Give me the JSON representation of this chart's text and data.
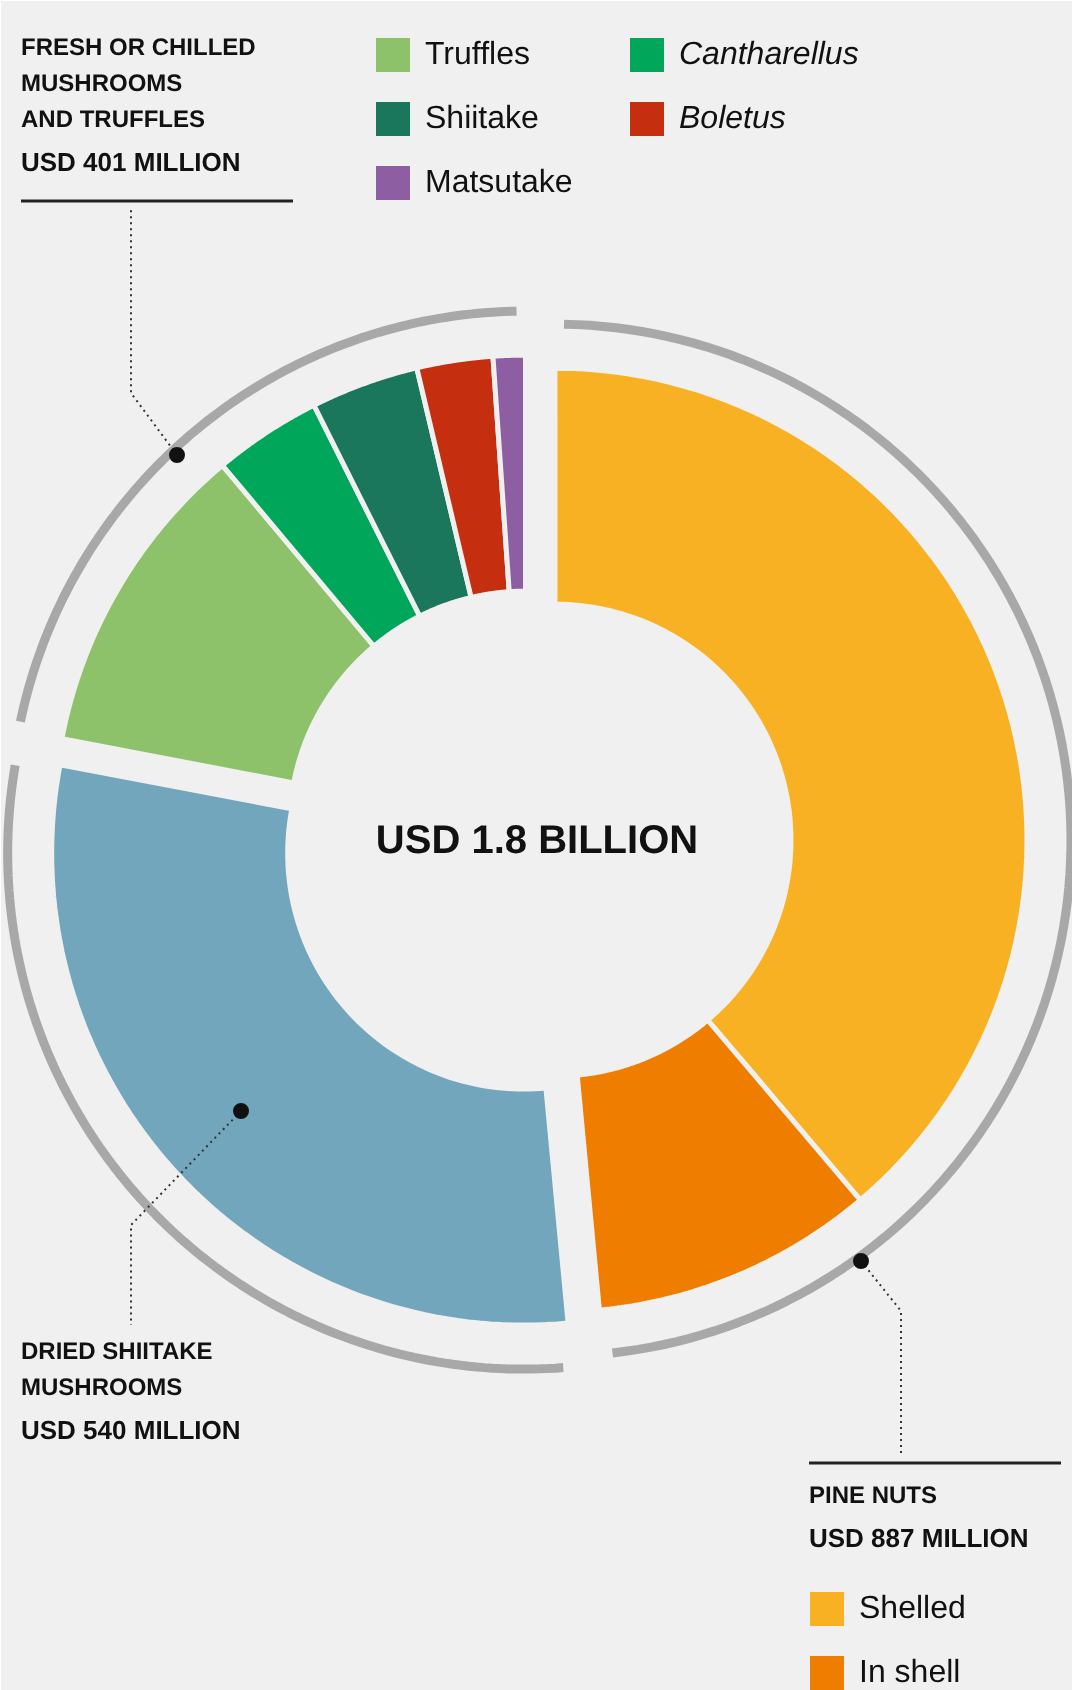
{
  "chart_data": {
    "type": "donut",
    "title": "USD 1.8 BILLION",
    "categories": [
      "Shelled",
      "In shell",
      null,
      "Truffles",
      "Cantharellus",
      "Shiitake",
      "Boletus",
      "Matsutake"
    ],
    "values": [
      38.8,
      9.7,
      29.5,
      10.9,
      3.7,
      3.7,
      2.6,
      1.1
    ],
    "colors": [
      "#f8b122",
      "#ef7d00",
      "#72a6bd",
      "#8dc26a",
      "#00a65a",
      "#1b775c",
      "#c52f10",
      "#8e5ea2"
    ],
    "annotations": [
      "FRESH OR CHILLED\nMUSHROOMS\nAND TRUFFLES\nUSD 401 MILLION",
      "DRIED SHIITAKE\nMUSHROOMS\nUSD 540 MILLION",
      "PINE NUTS\nUSD 887 MILLION"
    ],
    "legend": "right"
  }
}
